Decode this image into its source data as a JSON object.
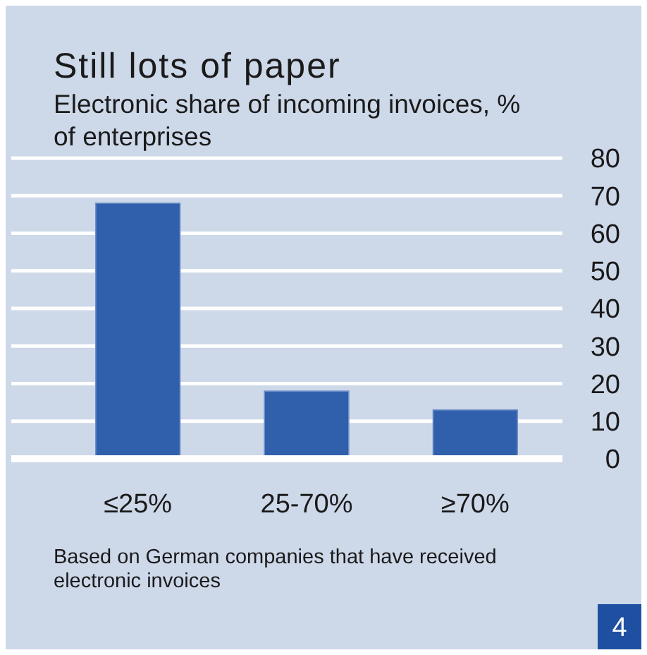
{
  "chart_data": {
    "type": "bar",
    "title": "Still lots of paper",
    "subtitle": "Electronic share of incoming invoices, % of enterprises",
    "categories": [
      "≤25%",
      "25-70%",
      "≥70%"
    ],
    "values": [
      68,
      18,
      13
    ],
    "color": "#3060ab",
    "ylim": [
      0,
      80
    ],
    "yticks": [
      0,
      10,
      20,
      30,
      40,
      50,
      60,
      70,
      80
    ],
    "grid": "y",
    "annotations": [
      "Based on German companies that have received electronic invoices",
      "4"
    ]
  }
}
